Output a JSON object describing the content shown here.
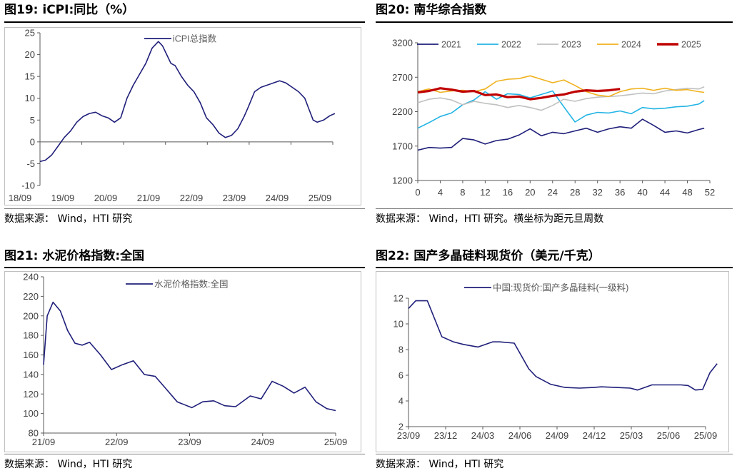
{
  "sources": {
    "standard": "数据来源： Wind，HTI 研究",
    "p20": "数据来源： Wind，HTI 研究。横坐标为距元旦周数"
  },
  "chart_data": [
    {
      "id": "p19",
      "type": "line",
      "title": "图19:  iCPI:同比（%）",
      "xlabel": "",
      "ylabel": "",
      "categories": [
        "18/09",
        "19/09",
        "20/09",
        "21/09",
        "22/09",
        "23/09",
        "24/09",
        "25/09"
      ],
      "ylim": [
        -10,
        25
      ],
      "yticks": [
        -10,
        -5,
        0,
        5,
        10,
        15,
        20,
        25
      ],
      "x": [
        2018.67,
        2018.8,
        2018.95,
        2019.1,
        2019.25,
        2019.4,
        2019.55,
        2019.7,
        2019.85,
        2020.0,
        2020.15,
        2020.3,
        2020.45,
        2020.6,
        2020.75,
        2020.9,
        2021.05,
        2021.2,
        2021.35,
        2021.5,
        2021.6,
        2021.7,
        2021.8,
        2021.9,
        2022.05,
        2022.2,
        2022.35,
        2022.5,
        2022.65,
        2022.8,
        2022.95,
        2023.1,
        2023.25,
        2023.4,
        2023.55,
        2023.65,
        2023.8,
        2023.95,
        2024.1,
        2024.25,
        2024.4,
        2024.55,
        2024.7,
        2024.85,
        2025.0,
        2025.1,
        2025.2,
        2025.3,
        2025.45,
        2025.6,
        2025.72
      ],
      "series": [
        {
          "name": "iCPI总指数",
          "color": "#1f1f7a",
          "values": [
            -4.5,
            -4.2,
            -3,
            -1,
            1,
            2.5,
            4.5,
            5.8,
            6.5,
            6.8,
            6,
            5.5,
            4.5,
            5.5,
            10,
            13,
            15.5,
            18,
            21.5,
            23,
            22,
            20,
            18,
            17.5,
            15,
            13,
            11.5,
            9,
            5.5,
            4,
            2,
            1,
            1.5,
            3,
            5.8,
            8,
            11.5,
            12.5,
            13,
            13.5,
            14,
            13.5,
            12.5,
            11.5,
            10,
            7.5,
            5,
            4.5,
            5,
            6,
            6.5
          ]
        }
      ]
    },
    {
      "id": "p20",
      "type": "line",
      "title": "图20:  南华综合指数",
      "xlabel": "",
      "ylabel": "",
      "xlim": [
        0,
        52
      ],
      "ylim": [
        1200,
        3200
      ],
      "xticks": [
        0,
        4,
        8,
        12,
        16,
        20,
        24,
        28,
        32,
        36,
        40,
        44,
        48,
        52
      ],
      "yticks": [
        1200,
        1700,
        2200,
        2700,
        3200
      ],
      "x": [
        0,
        2,
        4,
        6,
        8,
        10,
        12,
        14,
        16,
        18,
        20,
        22,
        24,
        26,
        28,
        30,
        32,
        34,
        36,
        38,
        40,
        42,
        44,
        46,
        48,
        50,
        51
      ],
      "series": [
        {
          "name": "2021",
          "color": "#1f1f7a",
          "values": [
            1640,
            1680,
            1670,
            1680,
            1810,
            1790,
            1730,
            1780,
            1800,
            1860,
            1950,
            1850,
            1900,
            1880,
            1920,
            1960,
            1900,
            1950,
            1980,
            1960,
            2090,
            2000,
            1900,
            1920,
            1890,
            1940,
            1960
          ]
        },
        {
          "name": "2022",
          "color": "#22b4e4",
          "values": [
            1960,
            2040,
            2130,
            2180,
            2300,
            2370,
            2490,
            2380,
            2460,
            2450,
            2400,
            2450,
            2500,
            2270,
            2050,
            2150,
            2190,
            2180,
            2210,
            2170,
            2260,
            2240,
            2250,
            2270,
            2280,
            2310,
            2360
          ]
        },
        {
          "name": "2023",
          "color": "#c0c0c0",
          "values": [
            2330,
            2380,
            2400,
            2370,
            2300,
            2350,
            2320,
            2300,
            2260,
            2290,
            2260,
            2220,
            2290,
            2380,
            2350,
            2390,
            2410,
            2420,
            2430,
            2450,
            2470,
            2460,
            2500,
            2520,
            2540,
            2530,
            2560
          ]
        },
        {
          "name": "2024",
          "color": "#f0b21e",
          "values": [
            2490,
            2530,
            2480,
            2500,
            2510,
            2490,
            2530,
            2640,
            2670,
            2680,
            2720,
            2670,
            2620,
            2660,
            2580,
            2490,
            2440,
            2420,
            2490,
            2530,
            2540,
            2510,
            2540,
            2510,
            2520,
            2490,
            2480
          ]
        },
        {
          "name": "2025",
          "color": "#c00000",
          "values": [
            2480,
            2500,
            2540,
            2520,
            2490,
            2500,
            2440,
            2450,
            2410,
            2420,
            2380,
            2400,
            2430,
            2450,
            2490,
            2510,
            2500,
            2510,
            2530,
            null,
            null,
            null,
            null,
            null,
            null,
            null,
            null
          ]
        }
      ]
    },
    {
      "id": "p21",
      "type": "line",
      "title": "图21:  水泥价格指数:全国",
      "xlabel": "",
      "ylabel": "",
      "categories": [
        "21/09",
        "22/09",
        "23/09",
        "24/09",
        "25/09"
      ],
      "ylim": [
        80,
        240
      ],
      "yticks": [
        80,
        100,
        120,
        140,
        160,
        180,
        200,
        220,
        240
      ],
      "x": [
        2021.67,
        2021.72,
        2021.8,
        2021.9,
        2022.0,
        2022.1,
        2022.2,
        2022.3,
        2022.45,
        2022.6,
        2022.75,
        2022.9,
        2023.05,
        2023.2,
        2023.35,
        2023.5,
        2023.7,
        2023.85,
        2024.0,
        2024.15,
        2024.3,
        2024.5,
        2024.65,
        2024.8,
        2024.95,
        2025.1,
        2025.25,
        2025.4,
        2025.55,
        2025.67
      ],
      "series": [
        {
          "name": "水泥价格指数:全国",
          "color": "#1f1f7a",
          "values": [
            150,
            200,
            214,
            205,
            185,
            172,
            170,
            173,
            160,
            145,
            150,
            154,
            140,
            138,
            125,
            112,
            106,
            112,
            113,
            108,
            107,
            118,
            115,
            133,
            128,
            121,
            127,
            112,
            105,
            103
          ]
        }
      ]
    },
    {
      "id": "p22",
      "type": "line",
      "title": "图22:  国产多晶硅料现货价（美元/千克）",
      "xlabel": "",
      "ylabel": "",
      "categories": [
        "23/09",
        "23/12",
        "24/03",
        "24/06",
        "24/09",
        "24/12",
        "25/03",
        "25/06",
        "25/09"
      ],
      "ylim": [
        2,
        12
      ],
      "yticks": [
        2,
        4,
        6,
        8,
        10,
        12
      ],
      "x": [
        2023.67,
        2023.72,
        2023.8,
        2023.9,
        2023.98,
        2024.05,
        2024.15,
        2024.25,
        2024.3,
        2024.4,
        2024.5,
        2024.55,
        2024.65,
        2024.75,
        2024.85,
        2024.95,
        2025.0,
        2025.1,
        2025.2,
        2025.25,
        2025.35,
        2025.45,
        2025.5,
        2025.55,
        2025.6,
        2025.65,
        2025.7,
        2025.75,
        2025.8
      ],
      "series": [
        {
          "name": "中国:现货价:国产多晶硅料(一级料)",
          "color": "#1f1f7a",
          "values": [
            11.2,
            11.8,
            11.8,
            9.0,
            8.6,
            8.4,
            8.2,
            8.6,
            8.6,
            8.5,
            6.5,
            5.9,
            5.3,
            5.05,
            5.0,
            5.05,
            5.1,
            5.05,
            5.0,
            4.85,
            5.25,
            5.25,
            5.25,
            5.25,
            5.2,
            4.85,
            4.9,
            6.2,
            6.9
          ]
        }
      ]
    }
  ]
}
